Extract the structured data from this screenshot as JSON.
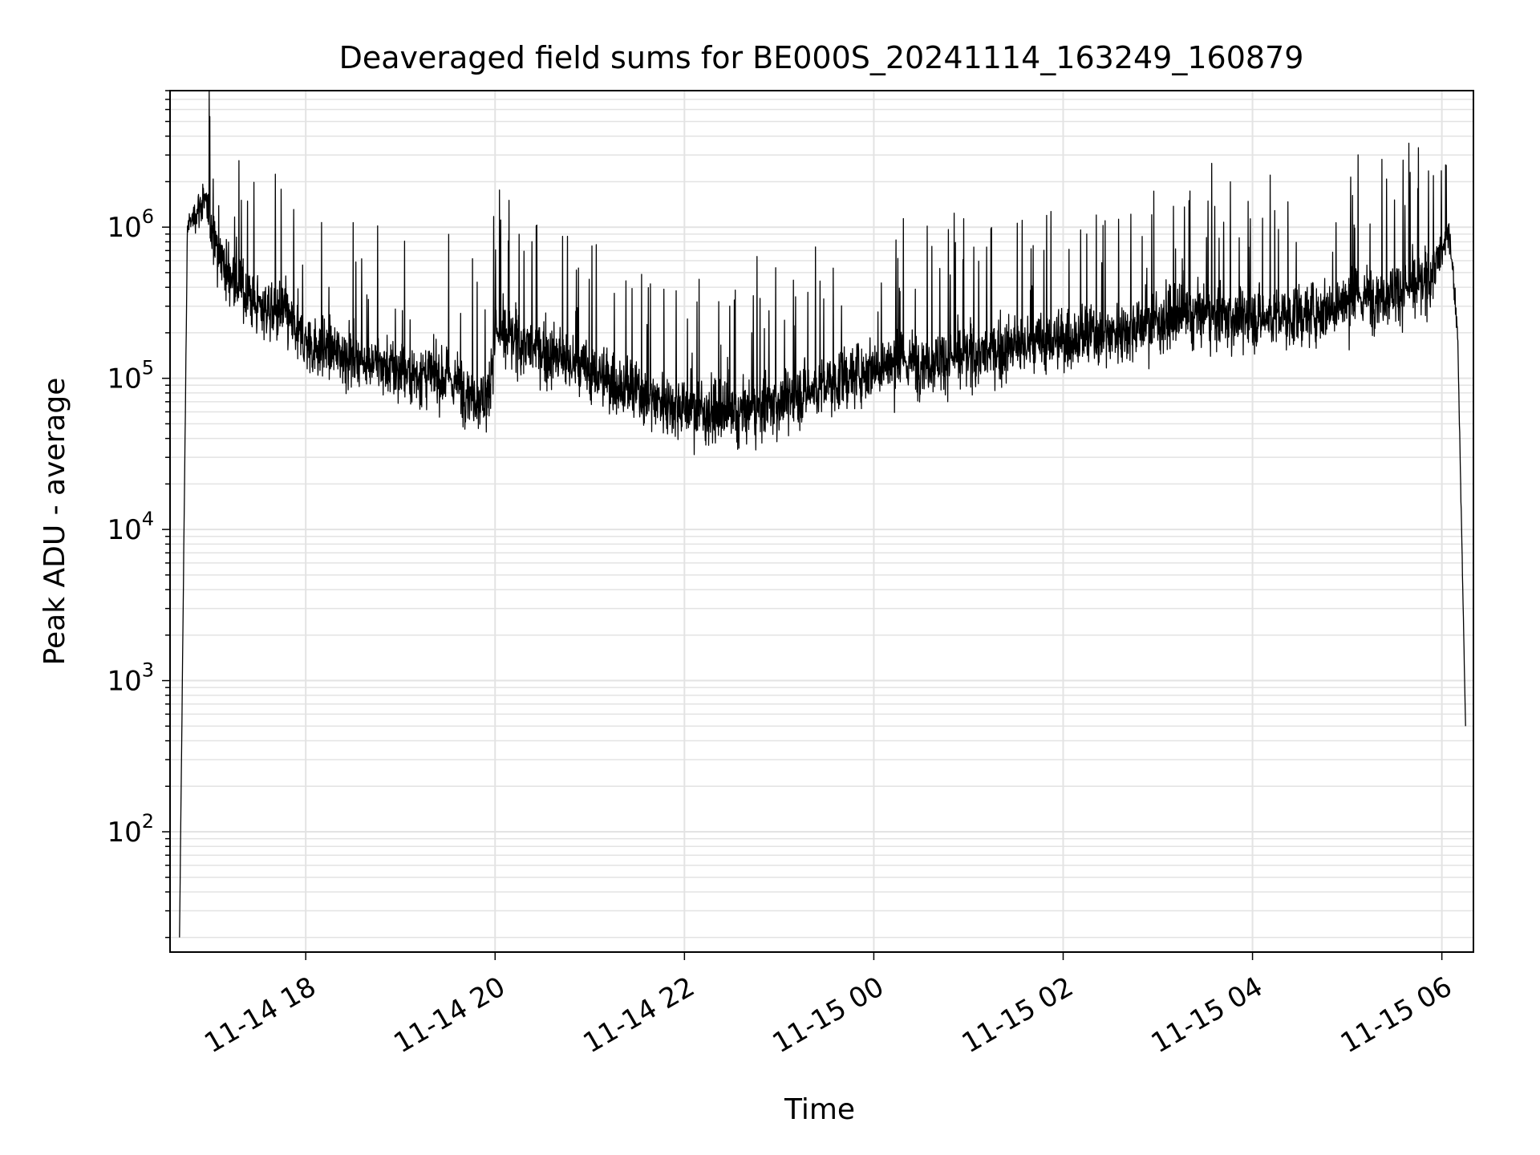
{
  "chart_data": {
    "type": "line",
    "title": "Deaveraged field sums for BE000S_20241114_163249_160879",
    "xlabel": "Time",
    "ylabel": "Peak ADU - average",
    "yscale": "log",
    "xlim": [
      "2024-11-14 16:34",
      "2024-11-15 06:20"
    ],
    "ylim": [
      16,
      8000000
    ],
    "x_ticks": [
      "11-14 18",
      "11-14 20",
      "11-14 22",
      "11-15 00",
      "11-15 02",
      "11-15 04",
      "11-15 06"
    ],
    "y_ticks": [
      {
        "base": "10",
        "exp": "2"
      },
      {
        "base": "10",
        "exp": "3"
      },
      {
        "base": "10",
        "exp": "4"
      },
      {
        "base": "10",
        "exp": "5"
      },
      {
        "base": "10",
        "exp": "6"
      }
    ],
    "grid": true,
    "line_color": "#000000",
    "series": [
      {
        "x": [
          "2024-11-14 16:40",
          "2024-11-14 16:45",
          "2024-11-14 16:55",
          "2024-11-14 17:10",
          "2024-11-14 17:30",
          "2024-11-14 17:45",
          "2024-11-14 18:00",
          "2024-11-14 18:30",
          "2024-11-14 19:00",
          "2024-11-14 19:30",
          "2024-11-14 19:55",
          "2024-11-14 20:00",
          "2024-11-14 20:30",
          "2024-11-14 21:00",
          "2024-11-14 21:30",
          "2024-11-14 22:00",
          "2024-11-14 22:30",
          "2024-11-14 23:00",
          "2024-11-14 23:30",
          "2024-11-15 00:00",
          "2024-11-15 00:30",
          "2024-11-15 01:00",
          "2024-11-15 01:30",
          "2024-11-15 02:00",
          "2024-11-15 02:30",
          "2024-11-15 03:00",
          "2024-11-15 03:30",
          "2024-11-15 04:00",
          "2024-11-15 04:30",
          "2024-11-15 05:00",
          "2024-11-15 05:30",
          "2024-11-15 05:50",
          "2024-11-15 06:05",
          "2024-11-15 06:10",
          "2024-11-15 06:15"
        ],
        "y": [
          20,
          1000000,
          1500000,
          500000,
          300000,
          280000,
          170000,
          140000,
          110000,
          100000,
          70000,
          200000,
          150000,
          110000,
          80000,
          65000,
          55000,
          70000,
          90000,
          120000,
          130000,
          140000,
          160000,
          180000,
          200000,
          240000,
          260000,
          250000,
          260000,
          320000,
          380000,
          420000,
          900000,
          200000,
          500
        ]
      }
    ]
  }
}
